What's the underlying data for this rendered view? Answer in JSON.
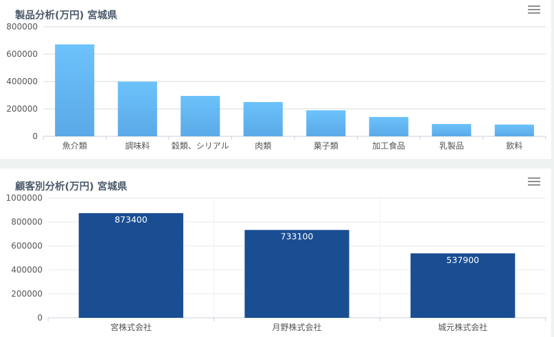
{
  "charts": {
    "product": {
      "title": "製品分析(万円) 宮城県",
      "menu_icon": "hamburger-menu-icon"
    },
    "customer": {
      "title": "顧客別分析(万円) 宮城県",
      "menu_icon": "hamburger-menu-icon"
    }
  },
  "colors": {
    "product_bar_top": "#6cc2fb",
    "product_bar_bottom": "#5aa9e8",
    "customer_bar": "#1a4e93",
    "gridline": "#d8d8d8",
    "background": "#eef2f1"
  },
  "chart_data": [
    {
      "type": "bar",
      "title": "製品分析(万円) 宮城県",
      "categories": [
        "魚介類",
        "調味料",
        "穀類、シリアル",
        "肉類",
        "菓子類",
        "加工食品",
        "乳製品",
        "飲料"
      ],
      "values": [
        671000,
        399000,
        295000,
        250000,
        190000,
        141000,
        90000,
        86000
      ],
      "y_ticks": [
        "0",
        "200000",
        "400000",
        "600000",
        "800000"
      ],
      "ylim": [
        0,
        800000
      ],
      "grid": true,
      "data_labels": false
    },
    {
      "type": "bar",
      "title": "顧客別分析(万円) 宮城県",
      "categories": [
        "宮株式会社",
        "月野株式会社",
        "城元株式会社"
      ],
      "values": [
        873400,
        733100,
        537900
      ],
      "y_ticks": [
        "0",
        "200000",
        "400000",
        "600000",
        "800000",
        "1000000"
      ],
      "ylim": [
        0,
        1000000
      ],
      "grid": true,
      "data_labels": true
    }
  ]
}
